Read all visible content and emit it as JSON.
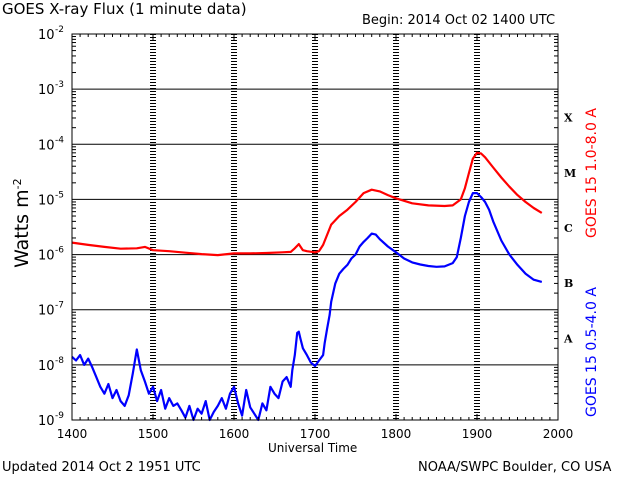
{
  "header": {
    "title": "GOES X-ray Flux (1 minute data)",
    "begin": "Begin: 2014 Oct 02 1400 UTC"
  },
  "footer": {
    "updated": "Updated 2014 Oct  2 1951 UTC",
    "credit": "NOAA/SWPC Boulder, CO USA"
  },
  "chart_data": {
    "type": "line",
    "title": "GOES X-ray Flux (1 minute data)",
    "xlabel": "Universal Time",
    "ylabel": "Watts m",
    "ylabel_sup": "-2",
    "xlim": [
      1400,
      2000
    ],
    "ylim_log10": [
      -9,
      -2
    ],
    "x_ticks": [
      "1400",
      "1500",
      "1600",
      "1700",
      "1800",
      "1900",
      "2000"
    ],
    "x_tick_values": [
      1400,
      1500,
      1600,
      1700,
      1800,
      1900,
      2000
    ],
    "y_tick_exponents": [
      -2,
      -3,
      -4,
      -5,
      -6,
      -7,
      -8,
      -9
    ],
    "y_tick_base": "10",
    "flare_classes": [
      {
        "label": "X",
        "exponent": -4
      },
      {
        "label": "M",
        "exponent": -5
      },
      {
        "label": "C",
        "exponent": -6
      },
      {
        "label": "B",
        "exponent": -7
      },
      {
        "label": "A",
        "exponent": -8
      }
    ],
    "series": [
      {
        "name": "GOES 15 1.0-8.0 A",
        "color": "#ff0000",
        "x": [
          1400,
          1420,
          1440,
          1460,
          1480,
          1490,
          1500,
          1520,
          1540,
          1560,
          1580,
          1600,
          1620,
          1640,
          1660,
          1670,
          1675,
          1680,
          1685,
          1690,
          1700,
          1705,
          1710,
          1720,
          1730,
          1740,
          1750,
          1760,
          1770,
          1780,
          1790,
          1800,
          1820,
          1840,
          1860,
          1870,
          1880,
          1885,
          1890,
          1895,
          1900,
          1905,
          1910,
          1920,
          1930,
          1940,
          1950,
          1960,
          1970,
          1980
        ],
        "y": [
          1.65e-06,
          1.5e-06,
          1.38e-06,
          1.28e-06,
          1.3e-06,
          1.38e-06,
          1.2e-06,
          1.15e-06,
          1.08e-06,
          1.02e-06,
          9.8e-07,
          1.05e-06,
          1.05e-06,
          1.07e-06,
          1.1e-06,
          1.12e-06,
          1.3e-06,
          1.55e-06,
          1.2e-06,
          1.15e-06,
          1.1e-06,
          1.15e-06,
          1.5e-06,
          3.5e-06,
          5e-06,
          6.5e-06,
          9e-06,
          1.3e-05,
          1.5e-05,
          1.4e-05,
          1.2e-05,
          1.05e-05,
          8.5e-06,
          7.8e-06,
          7.6e-06,
          7.8e-06,
          1e-05,
          1.6e-05,
          3e-05,
          5.5e-05,
          7e-05,
          6.8e-05,
          5.8e-05,
          3.8e-05,
          2.5e-05,
          1.7e-05,
          1.2e-05,
          9e-06,
          7e-06,
          5.7e-06
        ]
      },
      {
        "name": "GOES 15 0.5-4.0 A",
        "color": "#0000ff",
        "x": [
          1400,
          1405,
          1410,
          1415,
          1420,
          1425,
          1430,
          1435,
          1440,
          1445,
          1450,
          1455,
          1460,
          1465,
          1470,
          1475,
          1480,
          1485,
          1490,
          1495,
          1500,
          1505,
          1510,
          1515,
          1520,
          1525,
          1530,
          1535,
          1540,
          1545,
          1550,
          1555,
          1560,
          1565,
          1570,
          1575,
          1580,
          1585,
          1590,
          1595,
          1600,
          1605,
          1610,
          1615,
          1620,
          1625,
          1630,
          1635,
          1640,
          1645,
          1650,
          1655,
          1660,
          1665,
          1670,
          1672,
          1675,
          1678,
          1680,
          1682,
          1685,
          1690,
          1695,
          1700,
          1705,
          1710,
          1712,
          1715,
          1718,
          1720,
          1725,
          1730,
          1735,
          1740,
          1745,
          1750,
          1755,
          1760,
          1765,
          1770,
          1775,
          1780,
          1790,
          1800,
          1810,
          1820,
          1830,
          1840,
          1850,
          1860,
          1870,
          1875,
          1880,
          1885,
          1890,
          1895,
          1900,
          1905,
          1910,
          1915,
          1920,
          1930,
          1940,
          1950,
          1960,
          1970,
          1980
        ],
        "y": [
          1.4e-08,
          1.2e-08,
          1.5e-08,
          1e-08,
          1.3e-08,
          9e-09,
          6e-09,
          4e-09,
          3e-09,
          4.5e-09,
          2.5e-09,
          3.5e-09,
          2.2e-09,
          1.8e-09,
          2.8e-09,
          7e-09,
          1.9e-08,
          8e-09,
          5e-09,
          3e-09,
          4e-09,
          2.2e-09,
          3.5e-09,
          1.6e-09,
          2.5e-09,
          1.8e-09,
          2e-09,
          1.5e-09,
          1.1e-09,
          1.8e-09,
          1e-09,
          1.6e-09,
          1.3e-09,
          2.2e-09,
          1e-09,
          1.4e-09,
          1.8e-09,
          2.5e-09,
          1.6e-09,
          3e-09,
          4e-09,
          2e-09,
          1.2e-09,
          3.5e-09,
          1.7e-09,
          1.3e-09,
          1e-09,
          2e-09,
          1.5e-09,
          4e-09,
          3e-09,
          2.5e-09,
          5e-09,
          6e-09,
          4e-09,
          8e-09,
          1.5e-08,
          3.8e-08,
          4e-08,
          3e-08,
          2e-08,
          1.5e-08,
          1.1e-08,
          9.5e-09,
          1.2e-08,
          1.5e-08,
          2.5e-08,
          4.5e-08,
          8e-08,
          1.4e-07,
          3e-07,
          4.5e-07,
          5.5e-07,
          6.5e-07,
          8.5e-07,
          1e-06,
          1.4e-06,
          1.7e-06,
          2e-06,
          2.4e-06,
          2.3e-06,
          1.9e-06,
          1.4e-06,
          1.1e-06,
          8.5e-07,
          7.2e-07,
          6.6e-07,
          6.2e-07,
          6e-07,
          6.1e-07,
          7e-07,
          9e-07,
          2e-06,
          5e-06,
          9e-06,
          1.3e-05,
          1.3e-05,
          1.1e-05,
          9e-06,
          6.5e-06,
          4e-06,
          1.8e-06,
          1e-06,
          6.5e-07,
          4.5e-07,
          3.5e-07,
          3.2e-07
        ]
      }
    ]
  }
}
